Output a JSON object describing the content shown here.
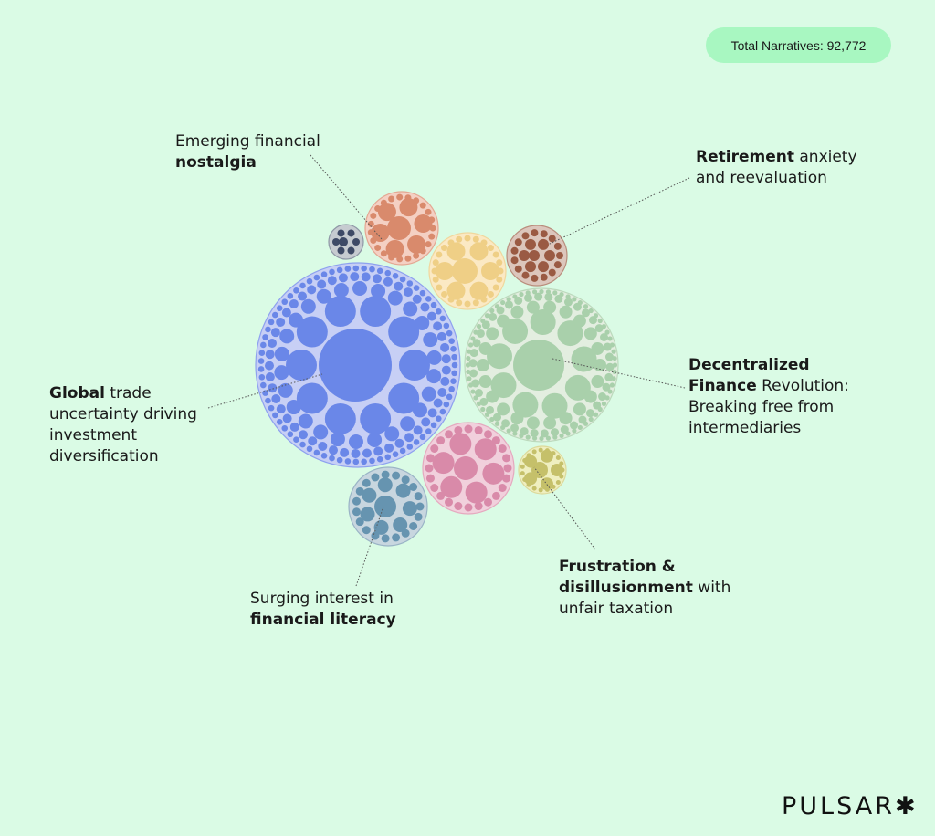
{
  "total_badge": {
    "label": "Total Narratives: 92,772"
  },
  "clusters": [
    {
      "id": "emerging",
      "bold_first": false,
      "text_a": "Emerging financial ",
      "text_b": "nostalgia",
      "outer": "#f4d0c3",
      "inner": "#d98a6c",
      "stroke": "#e4a893"
    },
    {
      "id": "retirement",
      "bold_first": true,
      "text_a": "Retirement",
      "text_b": " anxiety and reevaluation",
      "outer": "#dcc6bc",
      "inner": "#9a5a43",
      "stroke": "#b98d7c"
    },
    {
      "id": "defi",
      "bold_first": true,
      "text_a": "Decentralized Finance",
      "text_b": " Revolution: Breaking free from intermediaries",
      "outer": "#e3eee0",
      "inner": "#a9d0ab",
      "stroke": "#bcd9bc"
    },
    {
      "id": "global",
      "bold_first": true,
      "text_a": "Global",
      "text_b": " trade uncertainty driving investment diversification",
      "outer": "#c7cff5",
      "inner": "#6a87e8",
      "stroke": "#8ea1ef"
    },
    {
      "id": "literacy",
      "bold_first": false,
      "text_a": "Surging interest in ",
      "text_b": "financial literacy",
      "outer": "#c8d6df",
      "inner": "#6694b0",
      "stroke": "#9ab4c6"
    },
    {
      "id": "taxation",
      "bold_first": true,
      "text_a": "Frustration & disillusionment",
      "text_b": " with unfair taxation",
      "outer": "#efefc0",
      "inner": "#c5c06a",
      "stroke": "#dcd99a"
    },
    {
      "id": "yellow",
      "outer": "#fbe9c4",
      "inner": "#efcf86",
      "stroke": "#f0d79d"
    },
    {
      "id": "pink",
      "outer": "#f1d0dc",
      "inner": "#d98aa9",
      "stroke": "#e5a9bf"
    },
    {
      "id": "dark",
      "outer": "#c6cbd0",
      "inner": "#3e4a66",
      "stroke": "#8f98a6"
    }
  ],
  "logo": {
    "text": "PULSAR",
    "mark": "✱"
  }
}
